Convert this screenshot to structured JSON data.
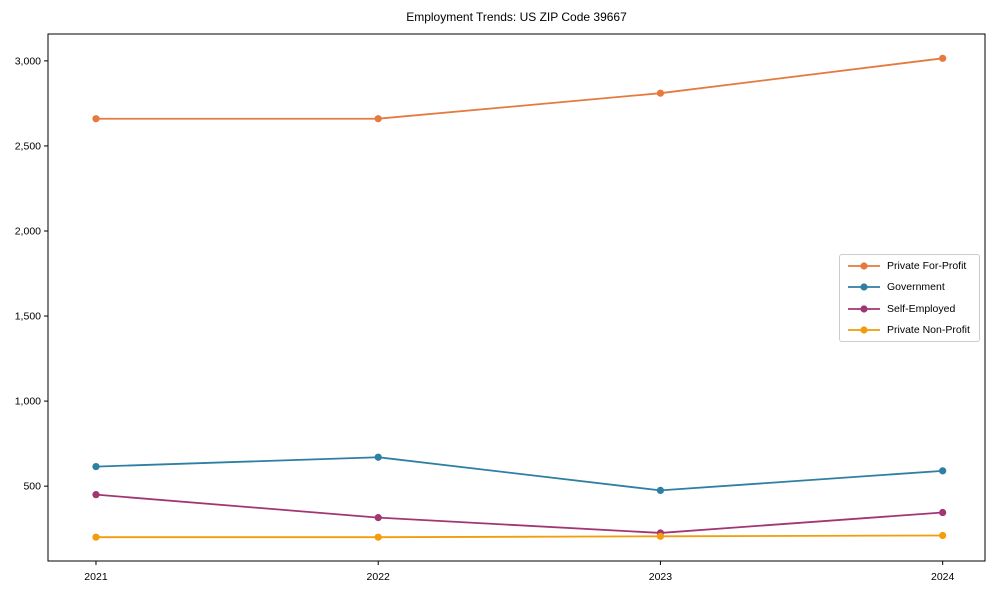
{
  "chart_data": {
    "type": "line",
    "title": "Employment Trends: US ZIP Code 39667",
    "xlabel": "",
    "ylabel": "",
    "x": [
      2021,
      2022,
      2023,
      2024
    ],
    "x_tick_labels": [
      "2021",
      "2022",
      "2023",
      "2024"
    ],
    "y_ticks": [
      500,
      1000,
      1500,
      2000,
      2500,
      3000
    ],
    "y_tick_labels": [
      "500",
      "1,000",
      "1,500",
      "2,000",
      "2,500",
      "3,000"
    ],
    "xlim": [
      2020.83,
      2024.15
    ],
    "ylim": [
      60,
      3158
    ],
    "grid": false,
    "legend_position": "center-right",
    "marker": "circle",
    "series": [
      {
        "name": "Private For-Profit",
        "color": "#e5793e",
        "values": [
          2660,
          2660,
          2810,
          3015
        ]
      },
      {
        "name": "Government",
        "color": "#2e7fa3",
        "values": [
          615,
          670,
          475,
          590
        ]
      },
      {
        "name": "Self-Employed",
        "color": "#a23673",
        "values": [
          450,
          315,
          225,
          345
        ]
      },
      {
        "name": "Private Non-Profit",
        "color": "#f39c0c",
        "values": [
          200,
          200,
          205,
          210
        ]
      }
    ]
  }
}
